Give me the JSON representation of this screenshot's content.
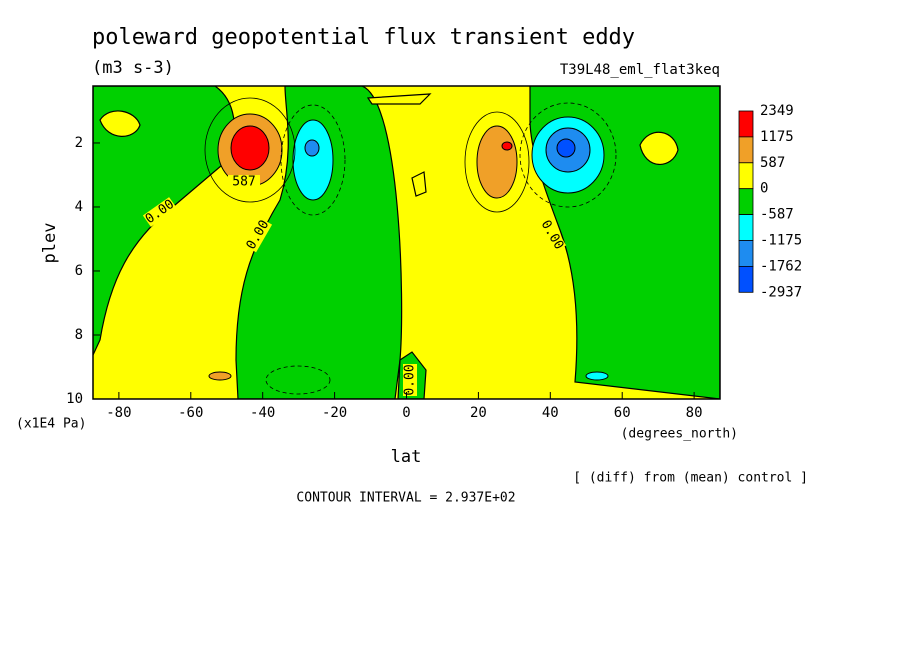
{
  "chart_data": {
    "type": "contour",
    "title": "poleward geopotential flux transient eddy",
    "units": "(m3 s-3)",
    "run_label": "T39L48_eml_flat3keq",
    "xlabel": "lat",
    "xunits": "(degrees_north)",
    "ylabel": "plev",
    "yunits": "(x1E4 Pa)",
    "note": "[ (diff) from (mean) control ]",
    "contour_interval": "CONTOUR INTERVAL = 2.937E+02",
    "xlim": [
      -87.2,
      87.2
    ],
    "xticks": [
      -80,
      -60,
      -40,
      -20,
      0,
      20,
      40,
      60,
      80
    ],
    "ylim": [
      10,
      0.22
    ],
    "yticks": [
      2,
      4,
      6,
      8,
      10
    ],
    "colorbar": {
      "levels": [
        2349,
        1175,
        587,
        0,
        -587,
        -1175,
        -1762,
        -2937
      ],
      "colors": [
        "#ff0000",
        "#f0a028",
        "#ffff00",
        "#00d000",
        "#00ffff",
        "#1e8cf0",
        "#0050ff"
      ]
    },
    "contour_labels": [
      "587",
      "0.00",
      "0.00",
      "0.00",
      "0.00"
    ]
  }
}
